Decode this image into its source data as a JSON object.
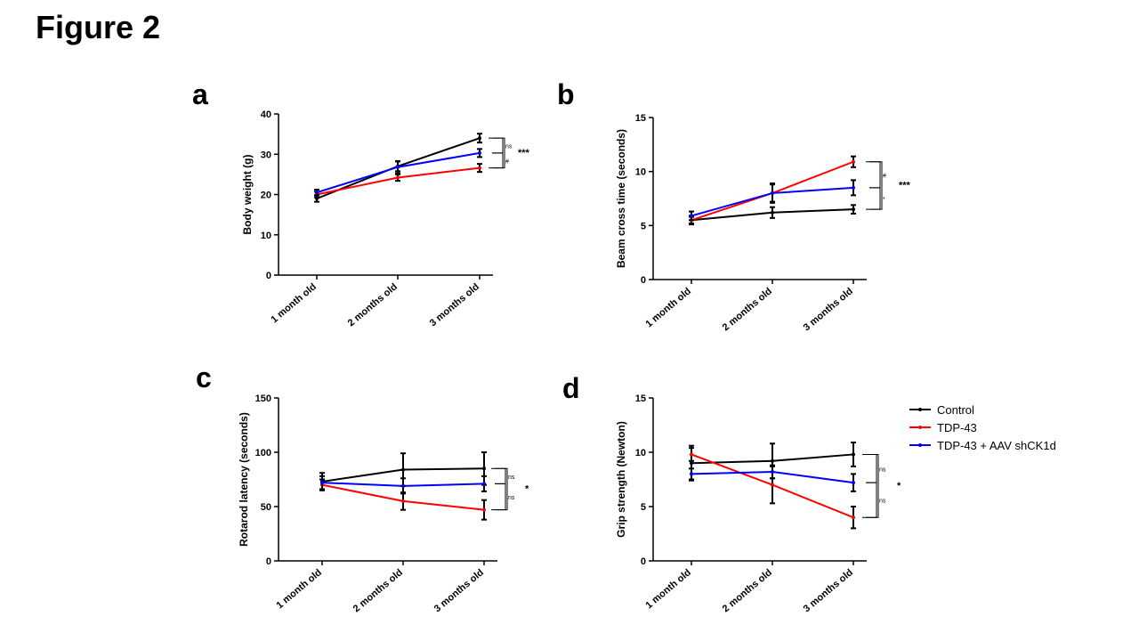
{
  "figure_title": "Figure 2",
  "legend": {
    "entries": [
      {
        "name": "Control",
        "color": "#000000"
      },
      {
        "name": "TDP-43",
        "color": "#ff0000"
      },
      {
        "name": "TDP-43 + AAV shCK1d",
        "color": "#0000ff"
      }
    ]
  },
  "chart_data": [
    {
      "panel": "a",
      "type": "line",
      "ylabel": "Body weight (g)",
      "xlabel": "",
      "categories": [
        "1 month old",
        "2 months old",
        "3 months old"
      ],
      "ylim": [
        0,
        40
      ],
      "yticks": [
        0,
        10,
        20,
        30,
        40
      ],
      "series": [
        {
          "name": "Control",
          "color": "#000000",
          "values": [
            19,
            27,
            34
          ],
          "errors": [
            0.8,
            1.2,
            1.1
          ]
        },
        {
          "name": "TDP-43",
          "color": "#ff0000",
          "values": [
            20,
            24.2,
            26.6
          ],
          "errors": [
            0.7,
            0.8,
            1.0
          ]
        },
        {
          "name": "TDP-43 + AAV shCK1d",
          "color": "#0000ff",
          "values": [
            20.5,
            26.8,
            30.3
          ],
          "errors": [
            0.7,
            1.5,
            1.0
          ]
        }
      ],
      "annotations": [
        {
          "label": "ns",
          "between": [
            "Control",
            "TDP-43 + AAV shCK1d"
          ]
        },
        {
          "label": "#",
          "between": [
            "TDP-43 + AAV shCK1d",
            "TDP-43"
          ]
        },
        {
          "label": "***",
          "between": [
            "Control",
            "TDP-43"
          ]
        }
      ]
    },
    {
      "panel": "b",
      "type": "line",
      "ylabel": "Beam cross time (seconds)",
      "xlabel": "",
      "categories": [
        "1 month old",
        "2 months old",
        "3 months old"
      ],
      "ylim": [
        0,
        15
      ],
      "yticks": [
        0,
        5,
        10,
        15
      ],
      "series": [
        {
          "name": "Control",
          "color": "#000000",
          "values": [
            5.5,
            6.2,
            6.5
          ],
          "errors": [
            0.3,
            0.5,
            0.4
          ]
        },
        {
          "name": "TDP-43",
          "color": "#ff0000",
          "values": [
            5.5,
            8.0,
            10.9
          ],
          "errors": [
            0.4,
            0.8,
            0.5
          ]
        },
        {
          "name": "TDP-43 + AAV shCK1d",
          "color": "#0000ff",
          "values": [
            5.9,
            8.0,
            8.5
          ],
          "errors": [
            0.4,
            0.9,
            0.7
          ]
        }
      ],
      "annotations": [
        {
          "label": "#",
          "between": [
            "TDP-43",
            "TDP-43 + AAV shCK1d"
          ]
        },
        {
          "label": "*",
          "between": [
            "TDP-43 + AAV shCK1d",
            "Control"
          ]
        },
        {
          "label": "***",
          "between": [
            "TDP-43",
            "Control"
          ]
        }
      ]
    },
    {
      "panel": "c",
      "type": "line",
      "ylabel": "Rotarod latency (seconds)",
      "xlabel": "",
      "categories": [
        "1 month old",
        "2 months old",
        "3 months old"
      ],
      "ylim": [
        0,
        150
      ],
      "yticks": [
        0,
        50,
        100,
        150
      ],
      "series": [
        {
          "name": "Control",
          "color": "#000000",
          "values": [
            73,
            84,
            85
          ],
          "errors": [
            8,
            15,
            15
          ]
        },
        {
          "name": "TDP-43",
          "color": "#ff0000",
          "values": [
            70,
            55,
            47
          ],
          "errors": [
            5,
            8,
            9
          ]
        },
        {
          "name": "TDP-43 + AAV shCK1d",
          "color": "#0000ff",
          "values": [
            72,
            69,
            71
          ],
          "errors": [
            6,
            7,
            7
          ]
        }
      ],
      "annotations": [
        {
          "label": "ns",
          "between": [
            "Control",
            "TDP-43 + AAV shCK1d"
          ]
        },
        {
          "label": "ns",
          "between": [
            "TDP-43 + AAV shCK1d",
            "TDP-43"
          ]
        },
        {
          "label": "*",
          "between": [
            "Control",
            "TDP-43"
          ]
        }
      ]
    },
    {
      "panel": "d",
      "type": "line",
      "ylabel": "Grip strength (Newton)",
      "xlabel": "",
      "categories": [
        "1 month old",
        "2 months old",
        "3 months old"
      ],
      "ylim": [
        0,
        15
      ],
      "yticks": [
        0,
        5,
        10,
        15
      ],
      "series": [
        {
          "name": "Control",
          "color": "#000000",
          "values": [
            9.0,
            9.2,
            9.8
          ],
          "errors": [
            1.6,
            1.6,
            1.1
          ]
        },
        {
          "name": "TDP-43",
          "color": "#ff0000",
          "values": [
            9.8,
            7.0,
            4.0
          ],
          "errors": [
            0.6,
            1.7,
            1.0
          ]
        },
        {
          "name": "TDP-43 + AAV shCK1d",
          "color": "#0000ff",
          "values": [
            8.0,
            8.2,
            7.2
          ],
          "errors": [
            0.5,
            0.6,
            0.8
          ]
        }
      ],
      "annotations": [
        {
          "label": "ns",
          "between": [
            "Control",
            "TDP-43 + AAV shCK1d"
          ]
        },
        {
          "label": "ns",
          "between": [
            "TDP-43 + AAV shCK1d",
            "TDP-43"
          ]
        },
        {
          "label": "*",
          "between": [
            "Control",
            "TDP-43"
          ]
        }
      ]
    }
  ]
}
